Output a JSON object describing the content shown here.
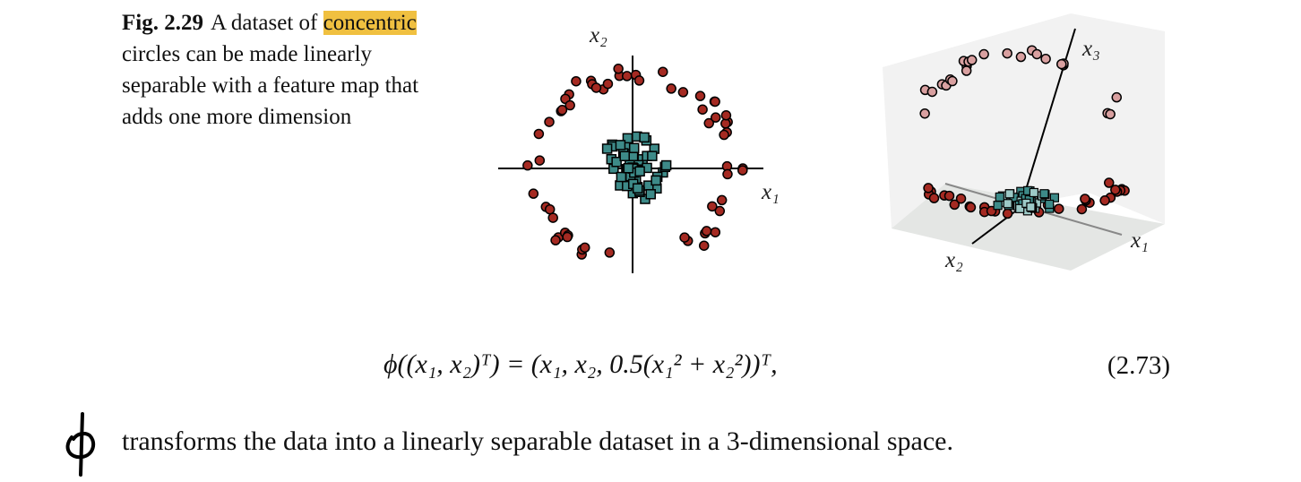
{
  "figure": {
    "label": "Fig. 2.29",
    "caption_parts": [
      "A dataset of",
      "concentric",
      "circles can be made linearly separable with a feature map that adds one more dimension"
    ],
    "plot_2d": {
      "x_label": "x₁",
      "y_label": "x₂"
    },
    "plot_3d": {
      "x_label": "x₁",
      "y_label": "x₂",
      "z_label": "x₃"
    }
  },
  "equation": {
    "text": "ϕ((x₁, x₂)ᵀ) = (x₁, x₂, 0.5(x₁² + x₂²))ᵀ,",
    "number": "(2.73)"
  },
  "body": "transforms the data into a linearly separable dataset in a 3-dimensional space."
}
